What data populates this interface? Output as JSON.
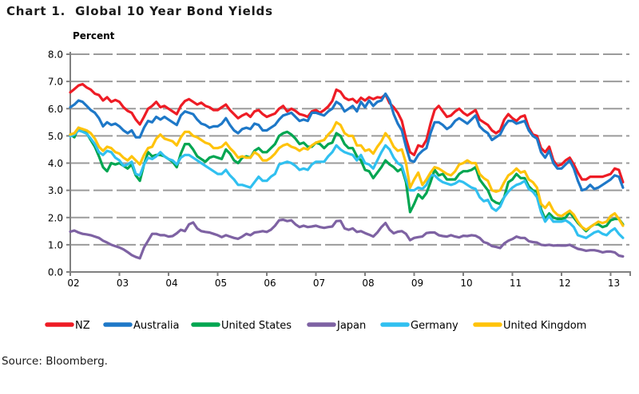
{
  "title": "Chart 1.  Global 10 Year Bond Yields",
  "source": "Source: Bloomberg.",
  "chart_data": {
    "type": "line",
    "title": "Chart 1. Global 10 Year Bond Yields",
    "ylabel": "Percent",
    "xlabel": "",
    "ylim": [
      0.0,
      8.0
    ],
    "y_ticks": [
      0.0,
      1.0,
      2.0,
      3.0,
      4.0,
      5.0,
      6.0,
      7.0,
      8.0
    ],
    "x_tick_labels": [
      "02",
      "03",
      "04",
      "05",
      "06",
      "07",
      "08",
      "09",
      "10",
      "11",
      "12",
      "13"
    ],
    "x_start_year": 2002,
    "x_end": "2013-04",
    "points_per_year": 12,
    "grid": "horizontal-dashed",
    "legend_position": "bottom",
    "grid_color": "#9b9b9b",
    "axis_color": "#808080",
    "series": [
      {
        "name": "NZ",
        "color": "#ee1c25",
        "values": [
          6.6,
          6.72,
          6.85,
          6.9,
          6.78,
          6.7,
          6.55,
          6.5,
          6.3,
          6.42,
          6.25,
          6.32,
          6.25,
          6.05,
          5.92,
          5.85,
          5.6,
          5.42,
          5.7,
          6.0,
          6.1,
          6.25,
          6.05,
          6.1,
          6.0,
          5.9,
          5.8,
          6.1,
          6.28,
          6.35,
          6.25,
          6.15,
          6.22,
          6.1,
          6.05,
          5.95,
          5.95,
          6.05,
          6.15,
          5.95,
          5.8,
          5.65,
          5.75,
          5.82,
          5.7,
          5.9,
          5.95,
          5.8,
          5.7,
          5.76,
          5.82,
          6.0,
          6.1,
          5.9,
          6.0,
          5.92,
          5.8,
          5.76,
          5.7,
          5.9,
          5.95,
          5.85,
          5.95,
          6.08,
          6.28,
          6.7,
          6.62,
          6.4,
          6.32,
          6.36,
          6.22,
          6.4,
          6.3,
          6.42,
          6.35,
          6.42,
          6.4,
          6.52,
          6.2,
          6.05,
          5.85,
          5.55,
          4.9,
          4.4,
          4.3,
          4.65,
          4.6,
          4.85,
          5.45,
          5.95,
          6.1,
          5.9,
          5.7,
          5.75,
          5.9,
          6.0,
          5.85,
          5.75,
          5.85,
          5.95,
          5.6,
          5.5,
          5.4,
          5.2,
          5.1,
          5.2,
          5.6,
          5.8,
          5.65,
          5.55,
          5.7,
          5.75,
          5.3,
          5.05,
          5.0,
          4.55,
          4.4,
          4.6,
          4.1,
          3.9,
          3.95,
          4.1,
          4.2,
          3.95,
          3.65,
          3.4,
          3.4,
          3.5,
          3.5,
          3.5,
          3.5,
          3.55,
          3.6,
          3.8,
          3.75,
          3.3
        ]
      },
      {
        "name": "Australia",
        "color": "#1e78c8",
        "values": [
          6.05,
          6.15,
          6.3,
          6.25,
          6.1,
          5.95,
          5.85,
          5.65,
          5.35,
          5.5,
          5.4,
          5.45,
          5.35,
          5.2,
          5.1,
          5.2,
          4.95,
          4.95,
          5.3,
          5.55,
          5.5,
          5.7,
          5.6,
          5.7,
          5.6,
          5.5,
          5.4,
          5.75,
          5.9,
          5.85,
          5.8,
          5.6,
          5.45,
          5.4,
          5.3,
          5.35,
          5.35,
          5.45,
          5.65,
          5.4,
          5.2,
          5.1,
          5.25,
          5.3,
          5.25,
          5.45,
          5.4,
          5.2,
          5.2,
          5.3,
          5.4,
          5.6,
          5.75,
          5.8,
          5.85,
          5.7,
          5.55,
          5.6,
          5.55,
          5.85,
          5.85,
          5.8,
          5.75,
          5.9,
          6.0,
          6.25,
          6.15,
          5.9,
          6.0,
          6.1,
          5.9,
          6.25,
          6.05,
          6.3,
          6.1,
          6.25,
          6.3,
          6.55,
          6.3,
          5.8,
          5.45,
          5.2,
          4.6,
          4.1,
          4.05,
          4.3,
          4.45,
          4.55,
          5.1,
          5.5,
          5.5,
          5.4,
          5.25,
          5.35,
          5.55,
          5.65,
          5.55,
          5.45,
          5.6,
          5.75,
          5.35,
          5.2,
          5.1,
          4.85,
          4.95,
          5.05,
          5.35,
          5.55,
          5.55,
          5.45,
          5.5,
          5.55,
          5.2,
          5.0,
          4.9,
          4.4,
          4.2,
          4.45,
          4.0,
          3.8,
          3.8,
          3.95,
          4.1,
          3.8,
          3.35,
          3.0,
          3.05,
          3.2,
          3.05,
          3.1,
          3.2,
          3.3,
          3.4,
          3.55,
          3.5,
          3.1
        ]
      },
      {
        "name": "United States",
        "color": "#00a651",
        "values": [
          5.05,
          4.95,
          5.3,
          5.2,
          5.1,
          4.85,
          4.6,
          4.25,
          3.85,
          3.7,
          4.0,
          3.95,
          4.0,
          3.9,
          3.8,
          3.95,
          3.55,
          3.35,
          3.95,
          4.4,
          4.25,
          4.3,
          4.3,
          4.25,
          4.15,
          4.05,
          3.85,
          4.35,
          4.7,
          4.7,
          4.5,
          4.25,
          4.15,
          4.05,
          4.2,
          4.25,
          4.2,
          4.15,
          4.5,
          4.35,
          4.1,
          4.0,
          4.2,
          4.25,
          4.2,
          4.45,
          4.55,
          4.4,
          4.4,
          4.55,
          4.7,
          5.0,
          5.1,
          5.15,
          5.05,
          4.9,
          4.7,
          4.75,
          4.6,
          4.6,
          4.75,
          4.7,
          4.55,
          4.7,
          4.75,
          5.1,
          5.0,
          4.7,
          4.55,
          4.55,
          4.25,
          4.1,
          3.75,
          3.7,
          3.45,
          3.65,
          3.85,
          4.1,
          3.95,
          3.85,
          3.7,
          3.8,
          3.3,
          2.2,
          2.5,
          2.85,
          2.7,
          2.9,
          3.3,
          3.75,
          3.55,
          3.6,
          3.4,
          3.4,
          3.4,
          3.6,
          3.7,
          3.7,
          3.75,
          3.85,
          3.4,
          3.2,
          3.0,
          2.65,
          2.55,
          2.5,
          2.75,
          3.3,
          3.4,
          3.6,
          3.45,
          3.45,
          3.15,
          3.0,
          2.95,
          2.3,
          1.95,
          2.15,
          2.0,
          1.95,
          1.95,
          2.0,
          2.2,
          2.0,
          1.8,
          1.65,
          1.5,
          1.65,
          1.75,
          1.75,
          1.65,
          1.7,
          1.9,
          1.95,
          1.95,
          1.75
        ]
      },
      {
        "name": "Japan",
        "color": "#7e62a3",
        "values": [
          1.48,
          1.52,
          1.45,
          1.4,
          1.38,
          1.35,
          1.3,
          1.25,
          1.15,
          1.08,
          1.0,
          0.95,
          0.9,
          0.83,
          0.73,
          0.62,
          0.55,
          0.5,
          0.9,
          1.15,
          1.4,
          1.4,
          1.35,
          1.35,
          1.3,
          1.32,
          1.42,
          1.55,
          1.5,
          1.75,
          1.82,
          1.6,
          1.5,
          1.47,
          1.45,
          1.4,
          1.35,
          1.28,
          1.35,
          1.3,
          1.25,
          1.22,
          1.3,
          1.4,
          1.35,
          1.45,
          1.47,
          1.5,
          1.47,
          1.55,
          1.7,
          1.9,
          1.92,
          1.87,
          1.9,
          1.75,
          1.65,
          1.7,
          1.65,
          1.67,
          1.7,
          1.65,
          1.62,
          1.65,
          1.67,
          1.87,
          1.88,
          1.6,
          1.55,
          1.6,
          1.47,
          1.5,
          1.43,
          1.37,
          1.3,
          1.45,
          1.65,
          1.8,
          1.55,
          1.42,
          1.48,
          1.5,
          1.4,
          1.17,
          1.25,
          1.28,
          1.3,
          1.43,
          1.45,
          1.45,
          1.35,
          1.32,
          1.3,
          1.35,
          1.3,
          1.27,
          1.33,
          1.32,
          1.35,
          1.33,
          1.25,
          1.1,
          1.05,
          0.95,
          0.92,
          0.88,
          1.05,
          1.15,
          1.21,
          1.3,
          1.25,
          1.25,
          1.13,
          1.1,
          1.08,
          1.0,
          0.98,
          1.0,
          0.97,
          0.98,
          0.97,
          0.97,
          1.0,
          0.92,
          0.85,
          0.82,
          0.78,
          0.8,
          0.8,
          0.77,
          0.72,
          0.75,
          0.75,
          0.72,
          0.6,
          0.57
        ]
      },
      {
        "name": "Germany",
        "color": "#30c0f0",
        "values": [
          4.98,
          5.05,
          5.2,
          5.15,
          5.08,
          4.9,
          4.7,
          4.4,
          4.3,
          4.45,
          4.4,
          4.2,
          4.1,
          3.9,
          3.95,
          4.05,
          3.6,
          3.55,
          3.95,
          4.2,
          4.15,
          4.25,
          4.4,
          4.25,
          4.15,
          4.1,
          3.95,
          4.2,
          4.3,
          4.3,
          4.2,
          4.1,
          4.0,
          3.9,
          3.8,
          3.7,
          3.6,
          3.6,
          3.75,
          3.55,
          3.4,
          3.2,
          3.2,
          3.15,
          3.1,
          3.3,
          3.5,
          3.35,
          3.35,
          3.5,
          3.6,
          3.95,
          4.0,
          4.05,
          4.0,
          3.9,
          3.75,
          3.8,
          3.75,
          3.95,
          4.05,
          4.05,
          4.05,
          4.25,
          4.4,
          4.65,
          4.5,
          4.4,
          4.35,
          4.3,
          4.1,
          4.3,
          4.0,
          3.95,
          3.8,
          4.1,
          4.4,
          4.65,
          4.5,
          4.2,
          4.0,
          3.9,
          3.4,
          3.0,
          3.0,
          3.1,
          3.05,
          3.2,
          3.55,
          3.55,
          3.4,
          3.3,
          3.25,
          3.2,
          3.25,
          3.35,
          3.3,
          3.2,
          3.1,
          3.05,
          2.75,
          2.6,
          2.65,
          2.35,
          2.25,
          2.4,
          2.75,
          2.95,
          3.1,
          3.2,
          3.25,
          3.35,
          3.05,
          2.95,
          2.75,
          2.2,
          1.85,
          2.05,
          1.85,
          1.85,
          1.85,
          1.9,
          1.8,
          1.65,
          1.35,
          1.3,
          1.25,
          1.35,
          1.45,
          1.5,
          1.4,
          1.35,
          1.5,
          1.6,
          1.4,
          1.25
        ]
      },
      {
        "name": "United Kingdom",
        "color": "#ffc30b",
        "values": [
          5.05,
          5.1,
          5.3,
          5.25,
          5.2,
          5.1,
          4.9,
          4.6,
          4.45,
          4.6,
          4.55,
          4.4,
          4.35,
          4.2,
          4.1,
          4.25,
          4.1,
          3.95,
          4.3,
          4.55,
          4.6,
          4.9,
          5.05,
          4.9,
          4.85,
          4.8,
          4.65,
          4.95,
          5.15,
          5.15,
          5.0,
          4.95,
          4.85,
          4.75,
          4.7,
          4.55,
          4.55,
          4.6,
          4.75,
          4.55,
          4.4,
          4.2,
          4.25,
          4.2,
          4.2,
          4.4,
          4.3,
          4.1,
          4.1,
          4.2,
          4.35,
          4.55,
          4.65,
          4.7,
          4.6,
          4.55,
          4.45,
          4.55,
          4.5,
          4.65,
          4.75,
          4.8,
          4.85,
          5.05,
          5.2,
          5.5,
          5.4,
          5.1,
          5.0,
          5.0,
          4.65,
          4.65,
          4.45,
          4.5,
          4.35,
          4.6,
          4.8,
          5.1,
          4.9,
          4.6,
          4.45,
          4.5,
          4.0,
          3.1,
          3.4,
          3.65,
          3.2,
          3.4,
          3.65,
          3.85,
          3.8,
          3.7,
          3.6,
          3.55,
          3.7,
          3.95,
          4.0,
          4.1,
          4.0,
          4.0,
          3.6,
          3.45,
          3.35,
          3.0,
          2.95,
          3.0,
          3.3,
          3.55,
          3.65,
          3.8,
          3.65,
          3.7,
          3.4,
          3.3,
          3.1,
          2.5,
          2.35,
          2.55,
          2.25,
          2.1,
          2.05,
          2.15,
          2.25,
          2.1,
          1.85,
          1.65,
          1.55,
          1.65,
          1.75,
          1.85,
          1.8,
          1.85,
          2.05,
          2.15,
          1.95,
          1.7
        ]
      }
    ]
  }
}
